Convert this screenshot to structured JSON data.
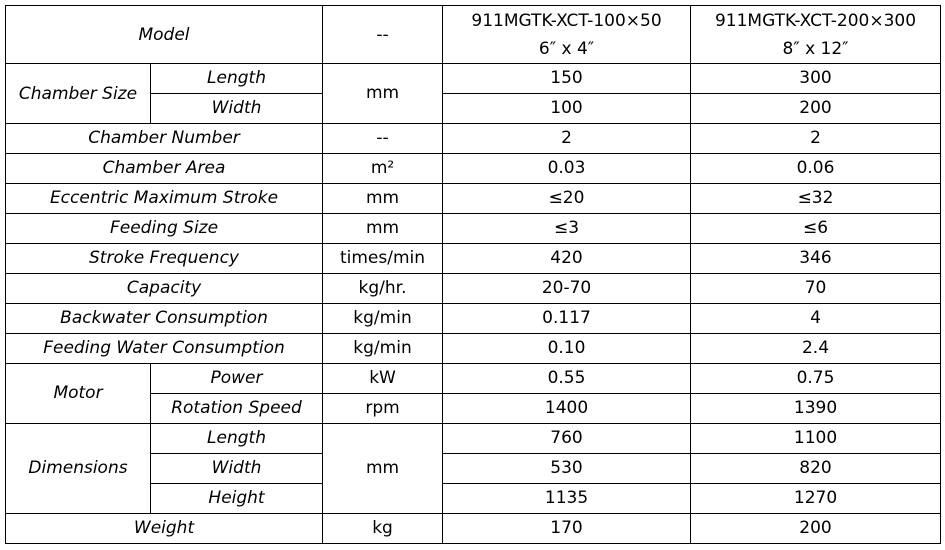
{
  "header": {
    "label": "Model",
    "unit": "--",
    "models": [
      {
        "name": "911MGTK-XCT-100×50",
        "size": "6″ x 4″"
      },
      {
        "name": "911MGTK-XCT-200×300",
        "size": "8″ x  12″"
      }
    ]
  },
  "chamber_size": {
    "group": "Chamber Size",
    "length": {
      "label": "Length",
      "a": "150",
      "b": "300"
    },
    "width": {
      "label": "Width",
      "a": "100",
      "b": "200"
    },
    "unit": "mm"
  },
  "rows1": [
    {
      "label": "Chamber Number",
      "unit": "--",
      "a": "2",
      "b": "2"
    },
    {
      "label": "Chamber Area",
      "unit": "m²",
      "a": "0.03",
      "b": "0.06"
    },
    {
      "label": "Eccentric Maximum Stroke",
      "unit": "mm",
      "a": "≤20",
      "b": "≤32"
    },
    {
      "label": "Feeding Size",
      "unit": "mm",
      "a": "≤3",
      "b": "≤6"
    },
    {
      "label": "Stroke Frequency",
      "unit": "times/min",
      "a": "420",
      "b": "346"
    },
    {
      "label": "Capacity",
      "unit": "kg/hr.",
      "a": "20-70",
      "b": "70"
    },
    {
      "label": "Backwater Consumption",
      "unit": "kg/min",
      "a": "0.117",
      "b": "4"
    },
    {
      "label": "Feeding Water Consumption",
      "unit": "kg/min",
      "a": "0.10",
      "b": "2.4"
    }
  ],
  "motor": {
    "group": "Motor",
    "power": {
      "label": "Power",
      "unit": "kW",
      "a": "0.55",
      "b": "0.75"
    },
    "speed": {
      "label": "Rotation Speed",
      "unit": "rpm",
      "a": "1400",
      "b": "1390"
    }
  },
  "dimensions": {
    "group": "Dimensions",
    "unit": "mm",
    "length": {
      "label": "Length",
      "a": "760",
      "b": "1100"
    },
    "width": {
      "label": "Width",
      "a": "530",
      "b": "820"
    },
    "height": {
      "label": "Height",
      "a": "1135",
      "b": "1270"
    }
  },
  "weight": {
    "label": "Weight",
    "unit": "kg",
    "a": "170",
    "b": "200"
  }
}
